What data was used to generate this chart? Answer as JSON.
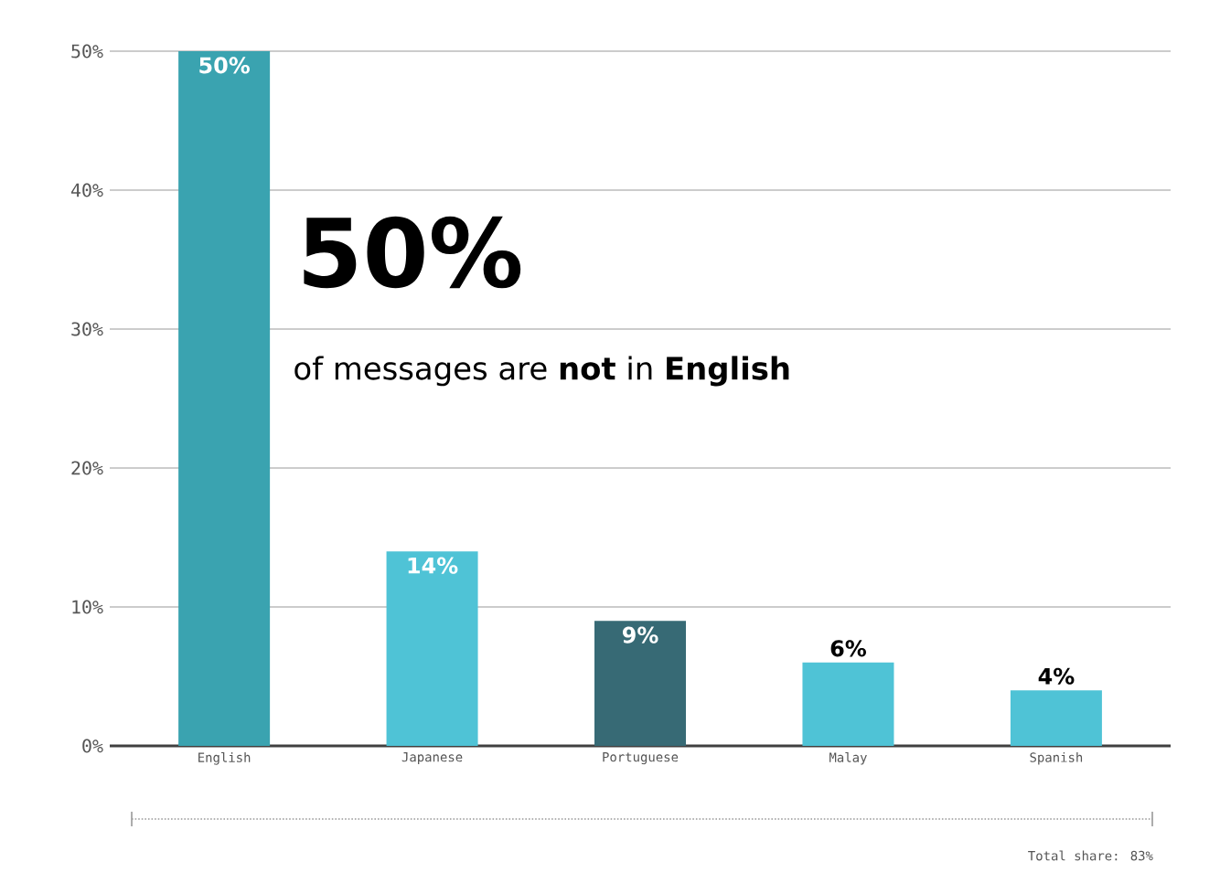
{
  "chart_data": {
    "type": "bar",
    "categories": [
      "English",
      "Japanese",
      "Portuguese",
      "Malay",
      "Spanish"
    ],
    "values": [
      50,
      14,
      9,
      6,
      4
    ],
    "colors": [
      "#3aa3b0",
      "#4fc3d6",
      "#376a75",
      "#4fc3d6",
      "#4fc3d6"
    ],
    "value_labels": [
      "50%",
      "14%",
      "9%",
      "6%",
      "4%"
    ],
    "ylim": [
      0,
      50
    ],
    "yticks": [
      {
        "value": 0,
        "label": "0%"
      },
      {
        "value": 10,
        "label": "10%"
      },
      {
        "value": 20,
        "label": "20%"
      },
      {
        "value": 30,
        "label": "30%"
      },
      {
        "value": 40,
        "label": "40%"
      },
      {
        "value": 50,
        "label": "50%"
      }
    ],
    "grid": "y",
    "annotations": [
      "50%",
      "of messages are **not** in **English**",
      "Total share: 83%"
    ]
  }
}
